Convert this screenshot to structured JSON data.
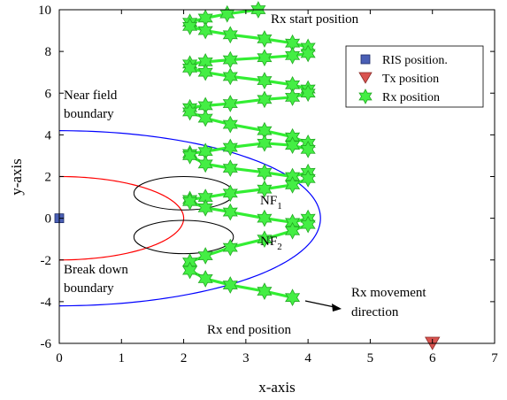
{
  "chart_data": {
    "type": "scatter",
    "xlabel": "x-axis",
    "ylabel": "y-axis",
    "xlim": [
      0,
      7
    ],
    "ylim": [
      -6,
      10
    ],
    "xticks": [
      0,
      1,
      2,
      3,
      4,
      5,
      6,
      7
    ],
    "yticks": [
      -6,
      -4,
      -2,
      0,
      2,
      4,
      6,
      8,
      10
    ],
    "grid": false,
    "legend": {
      "placement": "top-right",
      "entries": [
        {
          "label": "RIS position.",
          "marker": "square",
          "color": "#4a5fb5"
        },
        {
          "label": "Tx position",
          "marker": "triangle-down",
          "color": "#d9534f"
        },
        {
          "label": "Rx position",
          "marker": "hexagram",
          "color": "#33cc33"
        }
      ]
    },
    "ris_position": {
      "x": 0,
      "y": 0
    },
    "tx_position": {
      "x": 6,
      "y": -6
    },
    "rx_path": {
      "x": [
        3.2,
        2.7,
        2.35,
        2.1,
        2.1,
        2.35,
        2.75,
        3.3,
        3.75,
        4.0,
        4.0,
        3.75,
        3.3,
        2.75,
        2.35,
        2.1,
        2.1,
        2.35,
        2.75,
        3.3,
        3.75,
        4.0,
        4.0,
        3.75,
        3.3,
        2.75,
        2.35,
        2.1,
        2.1,
        2.35,
        2.75,
        3.3,
        3.75,
        4.0,
        4.0,
        3.75,
        3.3,
        2.75,
        2.35,
        2.1,
        2.1,
        2.35,
        2.75,
        3.3,
        3.75,
        4.0,
        4.0,
        3.75,
        3.3,
        2.75,
        2.35,
        2.1,
        2.1,
        2.35,
        2.75,
        3.3,
        3.75,
        4.0,
        4.0,
        3.75,
        3.3,
        2.75,
        2.35,
        2.1,
        2.1,
        2.35,
        2.75,
        3.3,
        3.75
      ],
      "y": [
        10.0,
        9.8,
        9.6,
        9.4,
        9.2,
        9.0,
        8.8,
        8.6,
        8.4,
        8.2,
        7.9,
        7.8,
        7.7,
        7.6,
        7.5,
        7.4,
        7.2,
        7.0,
        6.8,
        6.6,
        6.4,
        6.2,
        6.0,
        5.8,
        5.7,
        5.5,
        5.4,
        5.3,
        5.1,
        4.8,
        4.5,
        4.2,
        3.9,
        3.6,
        3.3,
        3.5,
        3.6,
        3.4,
        3.2,
        3.1,
        3.0,
        2.6,
        2.4,
        2.2,
        2.0,
        2.2,
        1.9,
        1.6,
        1.4,
        1.2,
        1.0,
        0.9,
        0.8,
        0.5,
        0.3,
        0.0,
        -0.2,
        0.0,
        -0.3,
        -0.6,
        -1.0,
        -1.4,
        -1.8,
        -2.1,
        -2.5,
        -2.9,
        -3.2,
        -3.5,
        -3.8
      ]
    },
    "near_field_boundary": {
      "radius": 4.2
    },
    "breakdown_boundary": {
      "radius": 2.0
    },
    "nf_regions": [
      {
        "center": [
          2.0,
          1.2
        ],
        "rx": 0.8,
        "ry": 0.8
      },
      {
        "center": [
          2.0,
          -0.9
        ],
        "rx": 0.8,
        "ry": 0.8
      }
    ],
    "annotations": {
      "rx_start": "Rx start position",
      "rx_end": "Rx end position",
      "near_field_line1": "Near field",
      "near_field_line2": "boundary",
      "breakdown_line1": "Break down",
      "breakdown_line2": "boundary",
      "nf1": "NF",
      "nf1_sub": "1",
      "nf2": "NF",
      "nf2_sub": "2",
      "movement_line1": "Rx movement",
      "movement_line2": "direction"
    },
    "colors": {
      "near_field": "#0000ff",
      "breakdown": "#ff0000",
      "nf_region": "#000000",
      "rx_line": "#33ee33",
      "rx_marker": "#44ee44",
      "rx_marker_edge": "#22aa22",
      "ris": "#4a5fb5",
      "tx": "#d9534f"
    }
  }
}
